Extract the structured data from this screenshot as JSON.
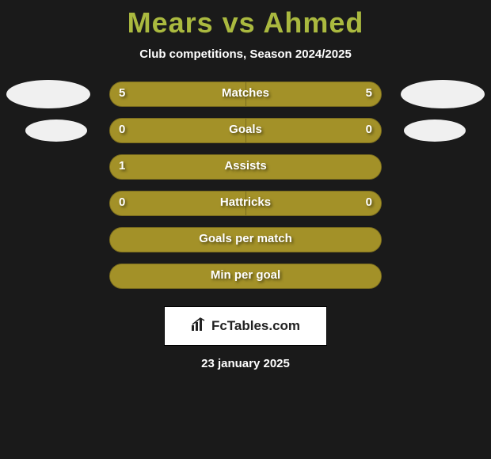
{
  "title": "Mears vs Ahmed",
  "subtitle": "Club competitions, Season 2024/2025",
  "title_color": "#aab93f",
  "background_color": "#1a1a1a",
  "bar_color_left": "#a39128",
  "bar_color_right": "#a39128",
  "bar_border_color": "#7a6c1e",
  "footer_date": "23 january 2025",
  "brand_text": "FcTables.com",
  "rows": [
    {
      "label": "Matches",
      "left_value": "5",
      "right_value": "5",
      "left_pct": 50,
      "right_pct": 50,
      "show_left_photo": true,
      "show_right_photo": true,
      "photo_size": "lg"
    },
    {
      "label": "Goals",
      "left_value": "0",
      "right_value": "0",
      "left_pct": 50,
      "right_pct": 50,
      "show_left_photo": true,
      "show_right_photo": true,
      "photo_size": "sm"
    },
    {
      "label": "Assists",
      "left_value": "1",
      "right_value": "",
      "left_pct": 100,
      "right_pct": 0,
      "show_left_photo": false,
      "show_right_photo": false
    },
    {
      "label": "Hattricks",
      "left_value": "0",
      "right_value": "0",
      "left_pct": 50,
      "right_pct": 50,
      "show_left_photo": false,
      "show_right_photo": false
    },
    {
      "label": "Goals per match",
      "left_value": "",
      "right_value": "",
      "left_pct": 100,
      "right_pct": 0,
      "show_left_photo": false,
      "show_right_photo": false
    },
    {
      "label": "Min per goal",
      "left_value": "",
      "right_value": "",
      "left_pct": 100,
      "right_pct": 0,
      "show_left_photo": false,
      "show_right_photo": false
    }
  ]
}
